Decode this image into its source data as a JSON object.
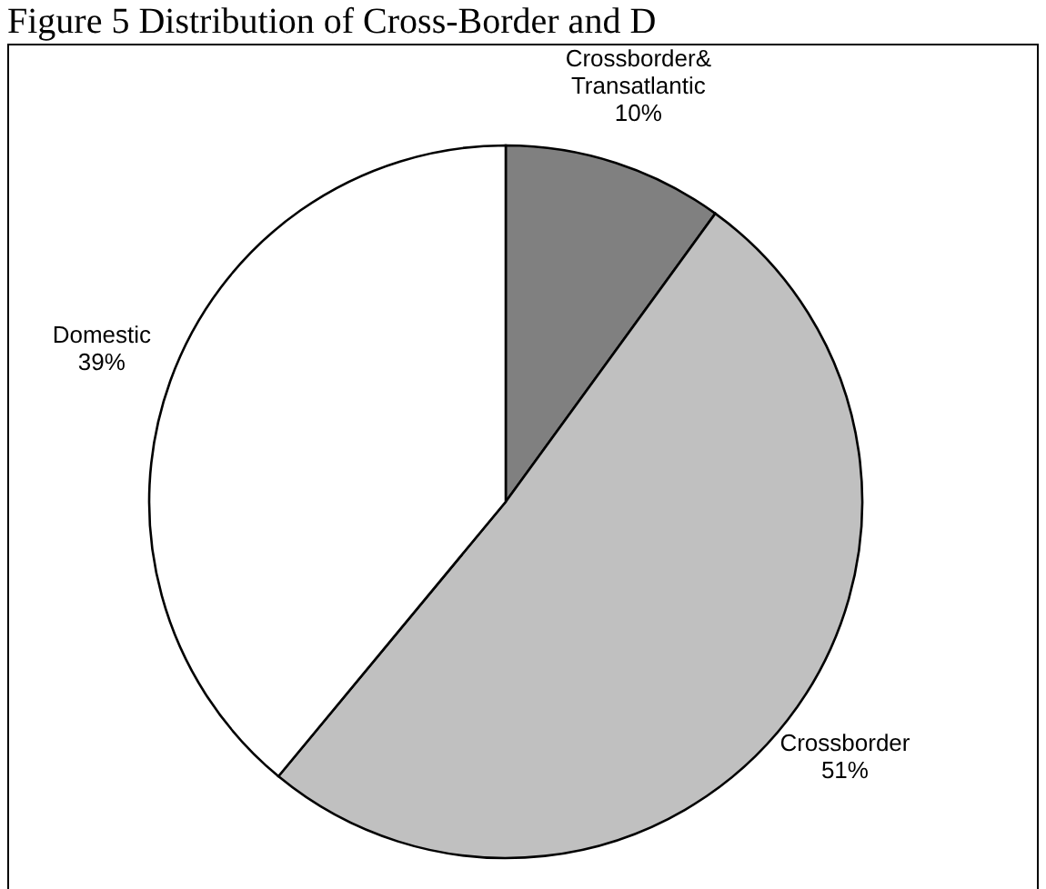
{
  "chart_data": {
    "type": "pie",
    "title": "Figure 5 Distribution of Cross-Border and D",
    "categories": [
      "Crossborder& Transatlantic",
      "Crossborder",
      "Domestic"
    ],
    "values": [
      10,
      51,
      39
    ],
    "colors": [
      "#808080",
      "#c0c0c0",
      "#ffffff"
    ],
    "value_labels": [
      "10%",
      "51%",
      "39%"
    ]
  }
}
